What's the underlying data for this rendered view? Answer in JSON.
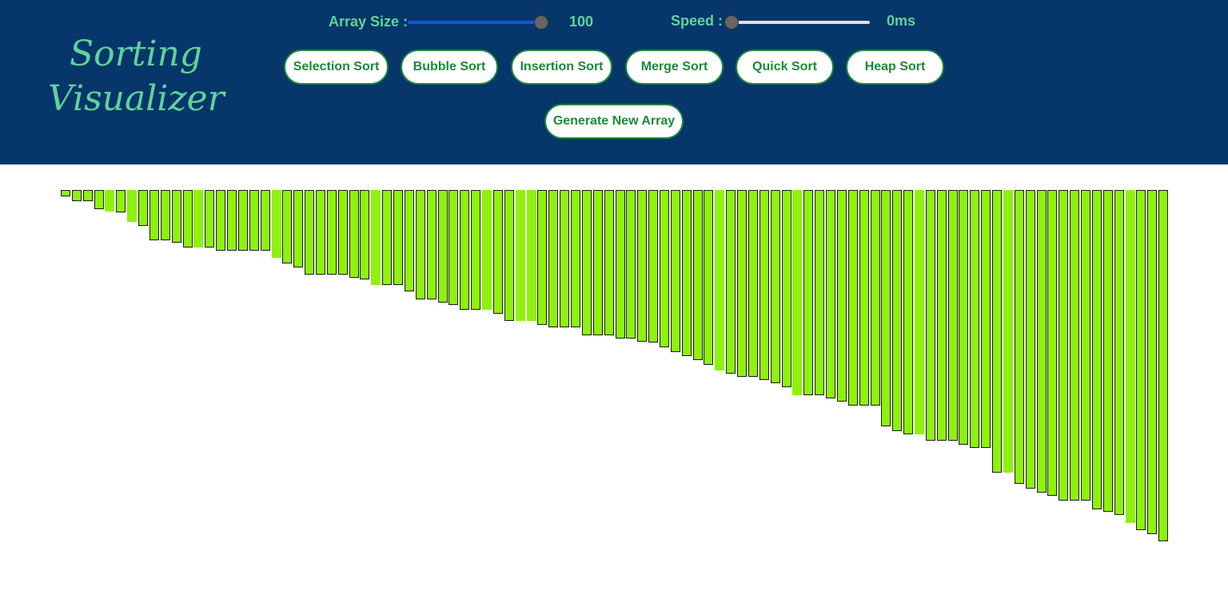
{
  "header": {
    "title_line1": "Sorting",
    "title_line2": "Visualizer",
    "array_size_label": "Array Size :",
    "array_size_value": "100",
    "array_size_slider_fraction": 1.0,
    "speed_label": "Speed :",
    "speed_value": "0ms",
    "speed_slider_fraction": 0.0
  },
  "buttons": {
    "selection": "Selection Sort",
    "bubble": "Bubble Sort",
    "insertion": "Insertion Sort",
    "merge": "Merge Sort",
    "quick": "Quick Sort",
    "heap": "Heap Sort",
    "generate": "Generate New Array"
  },
  "colors": {
    "header_bg": "#06366a",
    "accent_text": "#5fd39a",
    "button_text": "#1a8a3a",
    "bar_fill": "#8ef20e",
    "slider_active": "#0a5bd6"
  },
  "array": {
    "values": [
      8,
      14,
      14,
      24,
      27,
      28,
      40,
      45,
      63,
      63,
      66,
      72,
      72,
      72,
      76,
      76,
      76,
      76,
      76,
      85,
      92,
      97,
      106,
      106,
      106,
      106,
      110,
      112,
      119,
      119,
      119,
      127,
      137,
      137,
      141,
      144,
      150,
      150,
      150,
      155,
      164,
      164,
      164,
      169,
      172,
      172,
      172,
      182,
      182,
      182,
      186,
      186,
      190,
      191,
      197,
      203,
      208,
      213,
      219,
      226,
      230,
      234,
      234,
      238,
      242,
      247,
      257,
      257,
      257,
      261,
      265,
      270,
      270,
      270,
      296,
      302,
      306,
      306,
      314,
      314,
      314,
      319,
      323,
      323,
      354,
      354,
      368,
      374,
      379,
      383,
      389,
      389,
      389,
      400,
      403,
      407,
      417,
      426,
      431,
      440
    ],
    "bordered": [
      1,
      1,
      1,
      1,
      0,
      1,
      0,
      1,
      1,
      1,
      1,
      1,
      0,
      1,
      1,
      1,
      1,
      1,
      1,
      0,
      1,
      1,
      1,
      1,
      1,
      1,
      1,
      1,
      0,
      1,
      1,
      1,
      1,
      1,
      1,
      1,
      1,
      1,
      0,
      1,
      1,
      0,
      0,
      1,
      1,
      1,
      1,
      1,
      1,
      1,
      1,
      1,
      1,
      1,
      1,
      1,
      1,
      1,
      1,
      0,
      1,
      1,
      1,
      1,
      1,
      1,
      0,
      1,
      1,
      1,
      1,
      1,
      1,
      1,
      1,
      1,
      1,
      0,
      1,
      1,
      1,
      1,
      1,
      1,
      1,
      0,
      1,
      1,
      1,
      1,
      1,
      1,
      1,
      1,
      1,
      1,
      0,
      1,
      1,
      1
    ]
  }
}
